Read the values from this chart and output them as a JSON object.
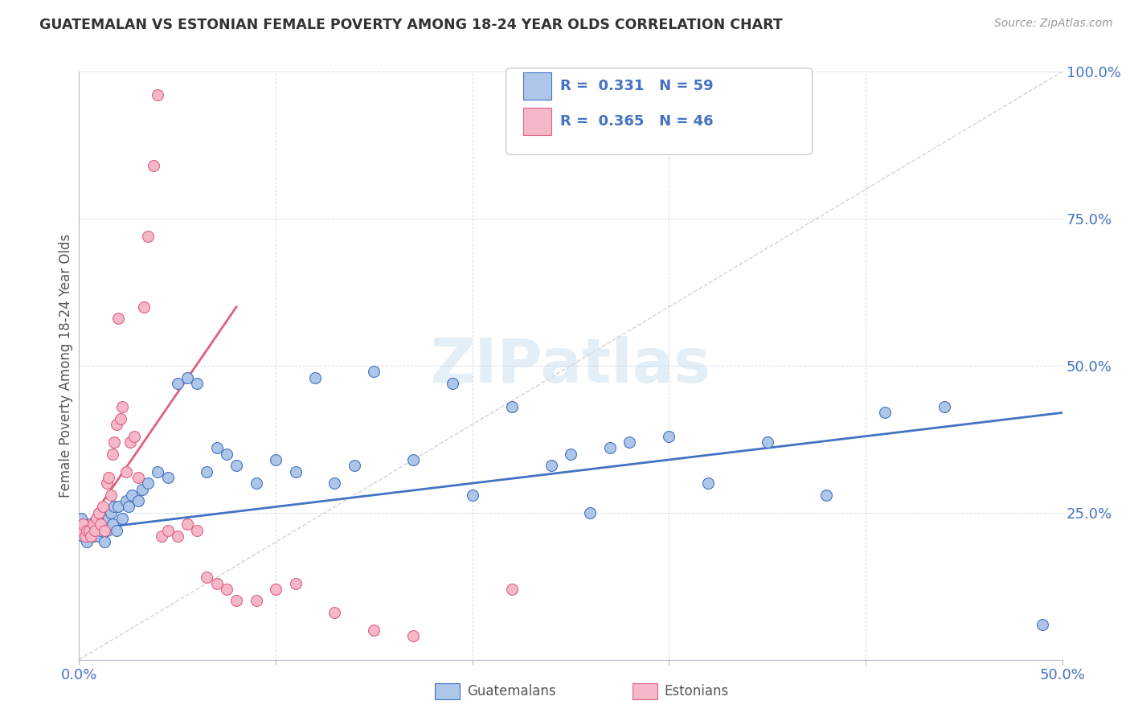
{
  "title": "GUATEMALAN VS ESTONIAN FEMALE POVERTY AMONG 18-24 YEAR OLDS CORRELATION CHART",
  "source": "Source: ZipAtlas.com",
  "ylabel": "Female Poverty Among 18-24 Year Olds",
  "xlim": [
    0.0,
    0.5
  ],
  "ylim": [
    0.0,
    1.0
  ],
  "x_ticks": [
    0.0,
    0.1,
    0.2,
    0.3,
    0.4,
    0.5
  ],
  "y_ticks": [
    0.0,
    0.25,
    0.5,
    0.75,
    1.0
  ],
  "y_tick_labels_right": [
    "",
    "25.0%",
    "50.0%",
    "75.0%",
    "100.0%"
  ],
  "guatemalan_color": "#aec6e8",
  "estonian_color": "#f5b8c8",
  "guatemalan_line_color": "#4472c4",
  "estonian_line_color": "#e06080",
  "diagonal_color": "#c8c8c8",
  "legend_R1": "0.331",
  "legend_N1": "59",
  "legend_R2": "0.365",
  "legend_N2": "46",
  "guatemalan_x": [
    0.001,
    0.002,
    0.003,
    0.004,
    0.005,
    0.006,
    0.007,
    0.008,
    0.009,
    0.01,
    0.011,
    0.012,
    0.013,
    0.014,
    0.015,
    0.016,
    0.017,
    0.018,
    0.019,
    0.02,
    0.022,
    0.024,
    0.025,
    0.027,
    0.03,
    0.032,
    0.035,
    0.04,
    0.045,
    0.05,
    0.055,
    0.06,
    0.065,
    0.07,
    0.075,
    0.08,
    0.09,
    0.1,
    0.11,
    0.12,
    0.13,
    0.14,
    0.15,
    0.17,
    0.19,
    0.2,
    0.22,
    0.24,
    0.25,
    0.26,
    0.27,
    0.28,
    0.3,
    0.32,
    0.35,
    0.38,
    0.41,
    0.44,
    0.49
  ],
  "guatemalan_y": [
    0.24,
    0.21,
    0.22,
    0.2,
    0.23,
    0.22,
    0.21,
    0.22,
    0.23,
    0.21,
    0.22,
    0.23,
    0.2,
    0.22,
    0.24,
    0.25,
    0.23,
    0.26,
    0.22,
    0.26,
    0.24,
    0.27,
    0.26,
    0.28,
    0.27,
    0.29,
    0.3,
    0.32,
    0.31,
    0.47,
    0.48,
    0.47,
    0.32,
    0.36,
    0.35,
    0.33,
    0.3,
    0.34,
    0.32,
    0.48,
    0.3,
    0.33,
    0.49,
    0.34,
    0.47,
    0.28,
    0.43,
    0.33,
    0.35,
    0.25,
    0.36,
    0.37,
    0.38,
    0.3,
    0.37,
    0.28,
    0.42,
    0.43,
    0.06
  ],
  "estonian_x": [
    0.001,
    0.002,
    0.003,
    0.004,
    0.005,
    0.006,
    0.007,
    0.008,
    0.009,
    0.01,
    0.011,
    0.012,
    0.013,
    0.014,
    0.015,
    0.016,
    0.017,
    0.018,
    0.019,
    0.02,
    0.021,
    0.022,
    0.024,
    0.026,
    0.028,
    0.03,
    0.033,
    0.035,
    0.038,
    0.04,
    0.042,
    0.045,
    0.05,
    0.055,
    0.06,
    0.065,
    0.07,
    0.075,
    0.08,
    0.09,
    0.1,
    0.11,
    0.13,
    0.15,
    0.17,
    0.22
  ],
  "estonian_y": [
    0.22,
    0.23,
    0.21,
    0.22,
    0.22,
    0.21,
    0.23,
    0.22,
    0.24,
    0.25,
    0.23,
    0.26,
    0.22,
    0.3,
    0.31,
    0.28,
    0.35,
    0.37,
    0.4,
    0.58,
    0.41,
    0.43,
    0.32,
    0.37,
    0.38,
    0.31,
    0.6,
    0.72,
    0.84,
    0.96,
    0.21,
    0.22,
    0.21,
    0.23,
    0.22,
    0.14,
    0.13,
    0.12,
    0.1,
    0.1,
    0.12,
    0.13,
    0.08,
    0.05,
    0.04,
    0.12
  ],
  "guat_line_x": [
    0.0,
    0.5
  ],
  "guat_line_y": [
    0.22,
    0.42
  ],
  "est_line_x": [
    0.0,
    0.08
  ],
  "est_line_y": [
    0.21,
    0.6
  ]
}
